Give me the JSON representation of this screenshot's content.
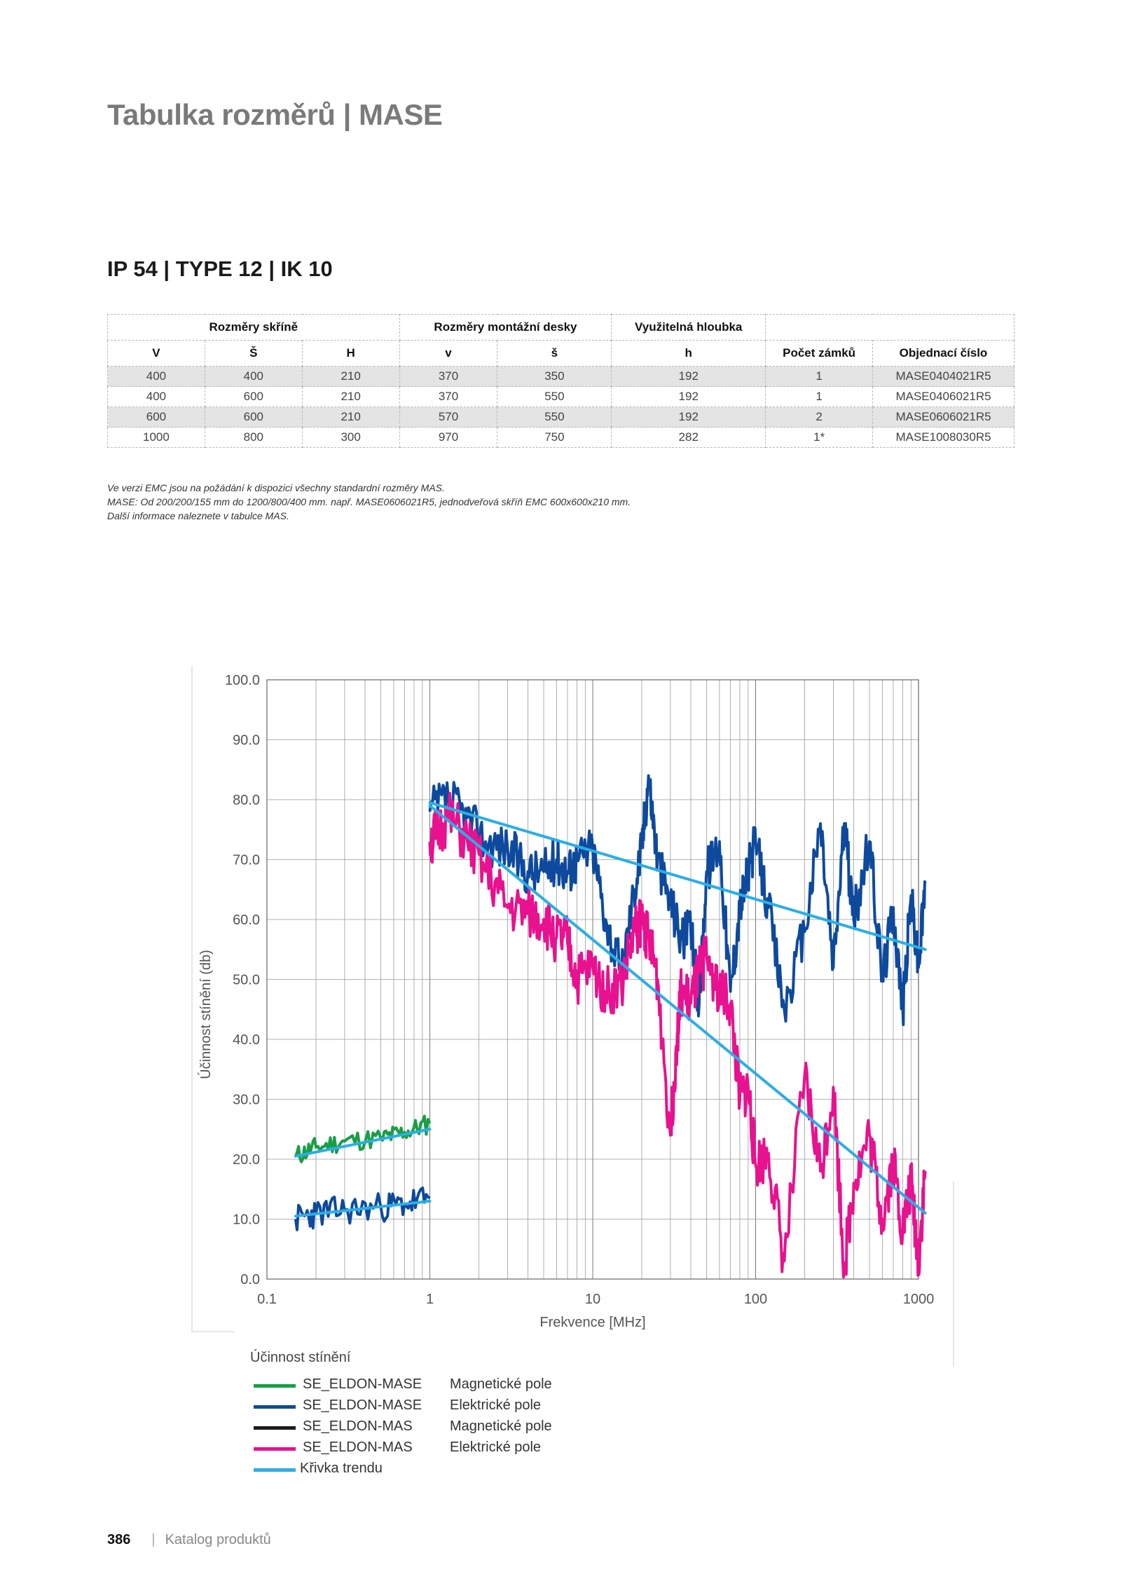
{
  "page": {
    "title": "Tabulka rozměrů | MASE",
    "section": "IP 54 | TYPE 12 | IK 10"
  },
  "table": {
    "groups": [
      "Rozměry skříně",
      "Rozměry montážní desky",
      "Využitelná hloubka"
    ],
    "headers": [
      "V",
      "Š",
      "H",
      "v",
      "š",
      "h",
      "Počet zámků",
      "Objednací číslo"
    ],
    "rows": [
      [
        "400",
        "400",
        "210",
        "370",
        "350",
        "192",
        "1",
        "MASE0404021R5"
      ],
      [
        "400",
        "600",
        "210",
        "370",
        "550",
        "192",
        "1",
        "MASE0406021R5"
      ],
      [
        "600",
        "600",
        "210",
        "570",
        "550",
        "192",
        "2",
        "MASE0606021R5"
      ],
      [
        "1000",
        "800",
        "300",
        "970",
        "750",
        "282",
        "1*",
        "MASE1008030R5"
      ]
    ]
  },
  "notes": [
    "Ve verzi EMC jsou na požádání k dispozici všechny standardní rozměry MAS.",
    "MASE: Od 200/200/155 mm do 1200/800/400 mm. např. MASE0606021R5, jednodveřová skříň EMC 600x600x210 mm.",
    "Další informace naleznete v tabulce MAS."
  ],
  "chart_data": {
    "type": "line",
    "title": "",
    "xlabel": "Frekvence [MHz]",
    "ylabel": "Účinnost stínění (db)",
    "xscale": "log",
    "xlim": [
      0.1,
      1000
    ],
    "ylim": [
      0,
      100
    ],
    "xticks": [
      "0.1",
      "1",
      "10",
      "100",
      "1000"
    ],
    "yticks": [
      "0.0",
      "10.0",
      "20.0",
      "30.0",
      "40.0",
      "50.0",
      "60.0",
      "70.0",
      "80.0",
      "90.0",
      "100.0"
    ],
    "grid": true,
    "series": [
      {
        "name": "SE_ELDON-MASE",
        "type": "Magnetické pole",
        "color": "#1a9e45",
        "x": [
          0.15,
          0.2,
          0.3,
          0.5,
          0.7,
          1.0
        ],
        "y": [
          20.5,
          22,
          23,
          23.5,
          24.5,
          26
        ]
      },
      {
        "name": "SE_ELDON-MASE",
        "type": "Elektrické pole",
        "color": "#0d4a9e",
        "x": [
          0.15,
          0.2,
          0.3,
          0.5,
          0.7,
          1.0,
          1.0,
          1.3,
          1.7,
          2.2,
          3,
          4,
          5,
          6,
          7,
          8,
          10,
          12,
          15,
          18,
          20,
          22,
          25,
          30,
          35,
          40,
          45,
          50,
          60,
          70,
          80,
          90,
          100,
          120,
          150,
          200,
          250,
          300,
          350,
          400,
          500,
          600,
          700,
          800,
          900,
          1000,
          1100
        ],
        "y": [
          10,
          11,
          11.5,
          12,
          12.5,
          13.5,
          78,
          80,
          77,
          73,
          72,
          68,
          68,
          70,
          68,
          70,
          72,
          60,
          51,
          65,
          72,
          84,
          70,
          63,
          57,
          58,
          46,
          68,
          73,
          48,
          62,
          68,
          73,
          62,
          45,
          58,
          76,
          52,
          76,
          60,
          73,
          50,
          62,
          45,
          64,
          52,
          66
        ]
      },
      {
        "name": "SE_ELDON-MAS",
        "type": "Magnetické pole",
        "color": "#1b1b1b",
        "x": [],
        "y": []
      },
      {
        "name": "SE_ELDON-MAS",
        "type": "Elektrické pole",
        "color": "#e8118f",
        "x": [
          1.0,
          1.1,
          1.3,
          1.7,
          2.2,
          3,
          4,
          5,
          6,
          7,
          8,
          10,
          12,
          15,
          18,
          20,
          22,
          25,
          30,
          33,
          35,
          40,
          45,
          50,
          60,
          70,
          80,
          90,
          100,
          120,
          150,
          200,
          250,
          300,
          350,
          400,
          500,
          600,
          700,
          800,
          900,
          1000,
          1100
        ],
        "y": [
          73,
          74,
          77,
          73,
          68,
          62,
          61,
          60,
          57,
          56,
          50,
          52,
          48,
          49,
          58,
          60,
          57,
          50,
          24,
          41,
          48,
          46,
          51,
          54,
          48,
          46,
          30,
          32,
          19,
          21,
          3,
          34,
          18,
          32,
          2,
          16,
          24,
          10,
          20,
          8,
          16,
          3,
          18
        ]
      },
      {
        "name": "Křivka trendu",
        "type": "",
        "color": "#2aaee6",
        "segments": [
          {
            "x": [
              0.15,
              1.0
            ],
            "y": [
              20.5,
              25
            ]
          },
          {
            "x": [
              0.15,
              1.0
            ],
            "y": [
              10.5,
              13
            ]
          },
          {
            "x": [
              1.0,
              1100
            ],
            "y": [
              79.5,
              55
            ]
          },
          {
            "x": [
              1.0,
              1100
            ],
            "y": [
              79,
              11
            ]
          }
        ]
      }
    ]
  },
  "legend": {
    "title": "Účinnost stínění",
    "items": [
      {
        "name": "SE_ELDON-MASE",
        "type": "Magnetické pole",
        "color": "#1a9e45"
      },
      {
        "name": "SE_ELDON-MASE",
        "type": "Elektrické pole",
        "color": "#0d4a9e"
      },
      {
        "name": "SE_ELDON-MAS",
        "type": "Magnetické pole",
        "color": "#1b1b1b"
      },
      {
        "name": "SE_ELDON-MAS",
        "type": "Elektrické pole",
        "color": "#e8118f"
      },
      {
        "name": "Křivka trendu",
        "type": "",
        "color": "#2aaee6"
      }
    ]
  },
  "footer": {
    "page_number": "386",
    "catalog": "Katalog produktů"
  }
}
